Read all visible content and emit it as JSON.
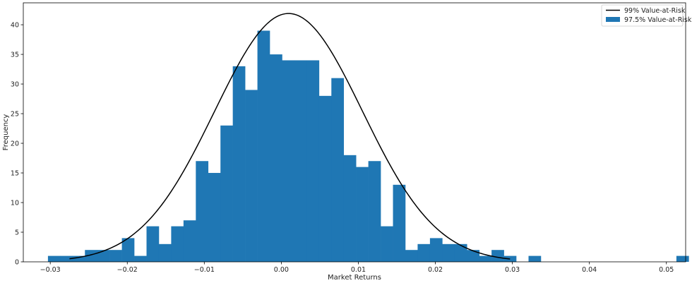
{
  "chart_data": {
    "type": "bar",
    "title": "",
    "xlabel": "Market Returns",
    "ylabel": "Frequency",
    "xlim": [
      -0.0335,
      0.0525
    ],
    "ylim": [
      0,
      43.7
    ],
    "grid": false,
    "legend_position": "top-right",
    "colors": {
      "bars": "#1f77b4",
      "curve": "#000000"
    },
    "x_ticks": [
      {
        "value": -0.03,
        "label": "−0.03"
      },
      {
        "value": -0.02,
        "label": "−0.02"
      },
      {
        "value": -0.01,
        "label": "−0.01"
      },
      {
        "value": 0.0,
        "label": "0.00"
      },
      {
        "value": 0.01,
        "label": "0.01"
      },
      {
        "value": 0.02,
        "label": "0.02"
      },
      {
        "value": 0.03,
        "label": "0.03"
      },
      {
        "value": 0.04,
        "label": "0.04"
      },
      {
        "value": 0.05,
        "label": "0.05"
      }
    ],
    "y_ticks": [
      {
        "value": 0,
        "label": "0"
      },
      {
        "value": 5,
        "label": "5"
      },
      {
        "value": 10,
        "label": "10"
      },
      {
        "value": 15,
        "label": "15"
      },
      {
        "value": 20,
        "label": "20"
      },
      {
        "value": 25,
        "label": "25"
      },
      {
        "value": 30,
        "label": "30"
      },
      {
        "value": 35,
        "label": "35"
      },
      {
        "value": 40,
        "label": "40"
      }
    ],
    "histogram": {
      "name": "97.5% Value-at-Risk",
      "bin_start": -0.0303,
      "bin_width": 0.0016,
      "counts": [
        1,
        1,
        1,
        2,
        2,
        2,
        4,
        1,
        6,
        3,
        6,
        7,
        17,
        15,
        23,
        33,
        29,
        39,
        35,
        34,
        34,
        34,
        28,
        31,
        18,
        16,
        17,
        6,
        13,
        2,
        3,
        4,
        3,
        3,
        2,
        1,
        2,
        1,
        0,
        1,
        0,
        0,
        0,
        0,
        0,
        0,
        0,
        0,
        0,
        0,
        0,
        1
      ]
    },
    "curve": {
      "name": "99% Value-at-Risk",
      "type": "line",
      "mean": 0.00094,
      "std": 0.0096,
      "peak": 41.9,
      "x_range": [
        -0.0275,
        0.0297
      ]
    },
    "legend": [
      {
        "label": "99% Value-at-Risk",
        "kind": "line"
      },
      {
        "label": "97.5% Value-at-Risk",
        "kind": "patch"
      }
    ]
  }
}
